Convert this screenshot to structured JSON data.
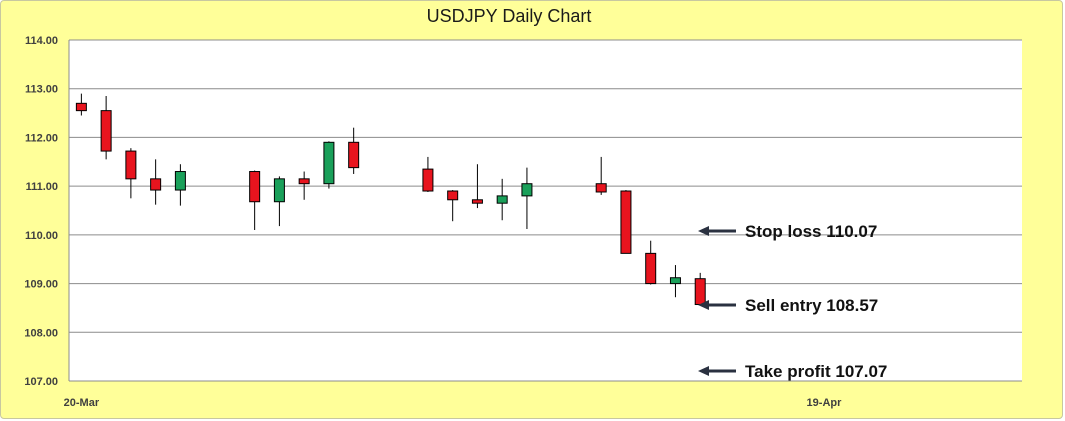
{
  "chart_data": {
    "type": "candlestick",
    "title": "USDJPY Daily Chart",
    "xlabel": "",
    "ylabel": "",
    "ylim": [
      107.0,
      114.0
    ],
    "y_ticks": [
      "107.00",
      "108.00",
      "109.00",
      "110.00",
      "111.00",
      "112.00",
      "113.00",
      "114.00"
    ],
    "x_ticks": [
      "20-Mar",
      "19-Apr"
    ],
    "x_range": [
      "20-Mar",
      "27-Apr"
    ],
    "grid": true,
    "colors": {
      "up": "#1aa05a",
      "down": "#e8141e",
      "plot_bg": "#ffffff",
      "frame_bg": "#ffff99",
      "grid": "#8c8c8c",
      "arrow": "#2a3140"
    },
    "candles": [
      {
        "date": "20-Mar",
        "open": 112.7,
        "high": 112.9,
        "low": 112.45,
        "close": 112.55
      },
      {
        "date": "21-Mar",
        "open": 112.55,
        "high": 112.85,
        "low": 111.55,
        "close": 111.72
      },
      {
        "date": "22-Mar",
        "open": 111.72,
        "high": 111.78,
        "low": 110.75,
        "close": 111.15
      },
      {
        "date": "23-Mar",
        "open": 111.15,
        "high": 111.55,
        "low": 110.62,
        "close": 110.92
      },
      {
        "date": "24-Mar",
        "open": 110.92,
        "high": 111.45,
        "low": 110.6,
        "close": 111.3
      },
      {
        "date": "27-Mar",
        "open": 111.3,
        "high": 111.32,
        "low": 110.1,
        "close": 110.68
      },
      {
        "date": "28-Mar",
        "open": 110.68,
        "high": 111.2,
        "low": 110.18,
        "close": 111.15
      },
      {
        "date": "29-Mar",
        "open": 111.15,
        "high": 111.3,
        "low": 110.72,
        "close": 111.05
      },
      {
        "date": "30-Mar",
        "open": 111.05,
        "high": 111.92,
        "low": 110.95,
        "close": 111.9
      },
      {
        "date": "31-Mar",
        "open": 111.9,
        "high": 112.2,
        "low": 111.25,
        "close": 111.38
      },
      {
        "date": "3-Apr",
        "open": 111.35,
        "high": 111.6,
        "low": 110.88,
        "close": 110.9
      },
      {
        "date": "4-Apr",
        "open": 110.9,
        "high": 110.92,
        "low": 110.28,
        "close": 110.72
      },
      {
        "date": "5-Apr",
        "open": 110.72,
        "high": 111.45,
        "low": 110.55,
        "close": 110.65
      },
      {
        "date": "6-Apr",
        "open": 110.65,
        "high": 111.15,
        "low": 110.3,
        "close": 110.8
      },
      {
        "date": "7-Apr",
        "open": 110.8,
        "high": 111.38,
        "low": 110.12,
        "close": 111.05
      },
      {
        "date": "10-Apr",
        "open": 111.05,
        "high": 111.6,
        "low": 110.82,
        "close": 110.88
      },
      {
        "date": "11-Apr",
        "open": 110.9,
        "high": 110.92,
        "low": 109.62,
        "close": 109.62
      },
      {
        "date": "12-Apr",
        "open": 109.62,
        "high": 109.88,
        "low": 108.98,
        "close": 109.0
      },
      {
        "date": "13-Apr",
        "open": 109.0,
        "high": 109.38,
        "low": 108.72,
        "close": 109.12
      },
      {
        "date": "14-Apr",
        "open": 109.1,
        "high": 109.22,
        "low": 108.55,
        "close": 108.57
      }
    ],
    "annotations": [
      {
        "text": "Stop loss 110.07",
        "value": 110.07
      },
      {
        "text": "Sell entry 108.57",
        "value": 108.57
      },
      {
        "text": "Take profit 107.07",
        "value": 107.07
      }
    ]
  }
}
